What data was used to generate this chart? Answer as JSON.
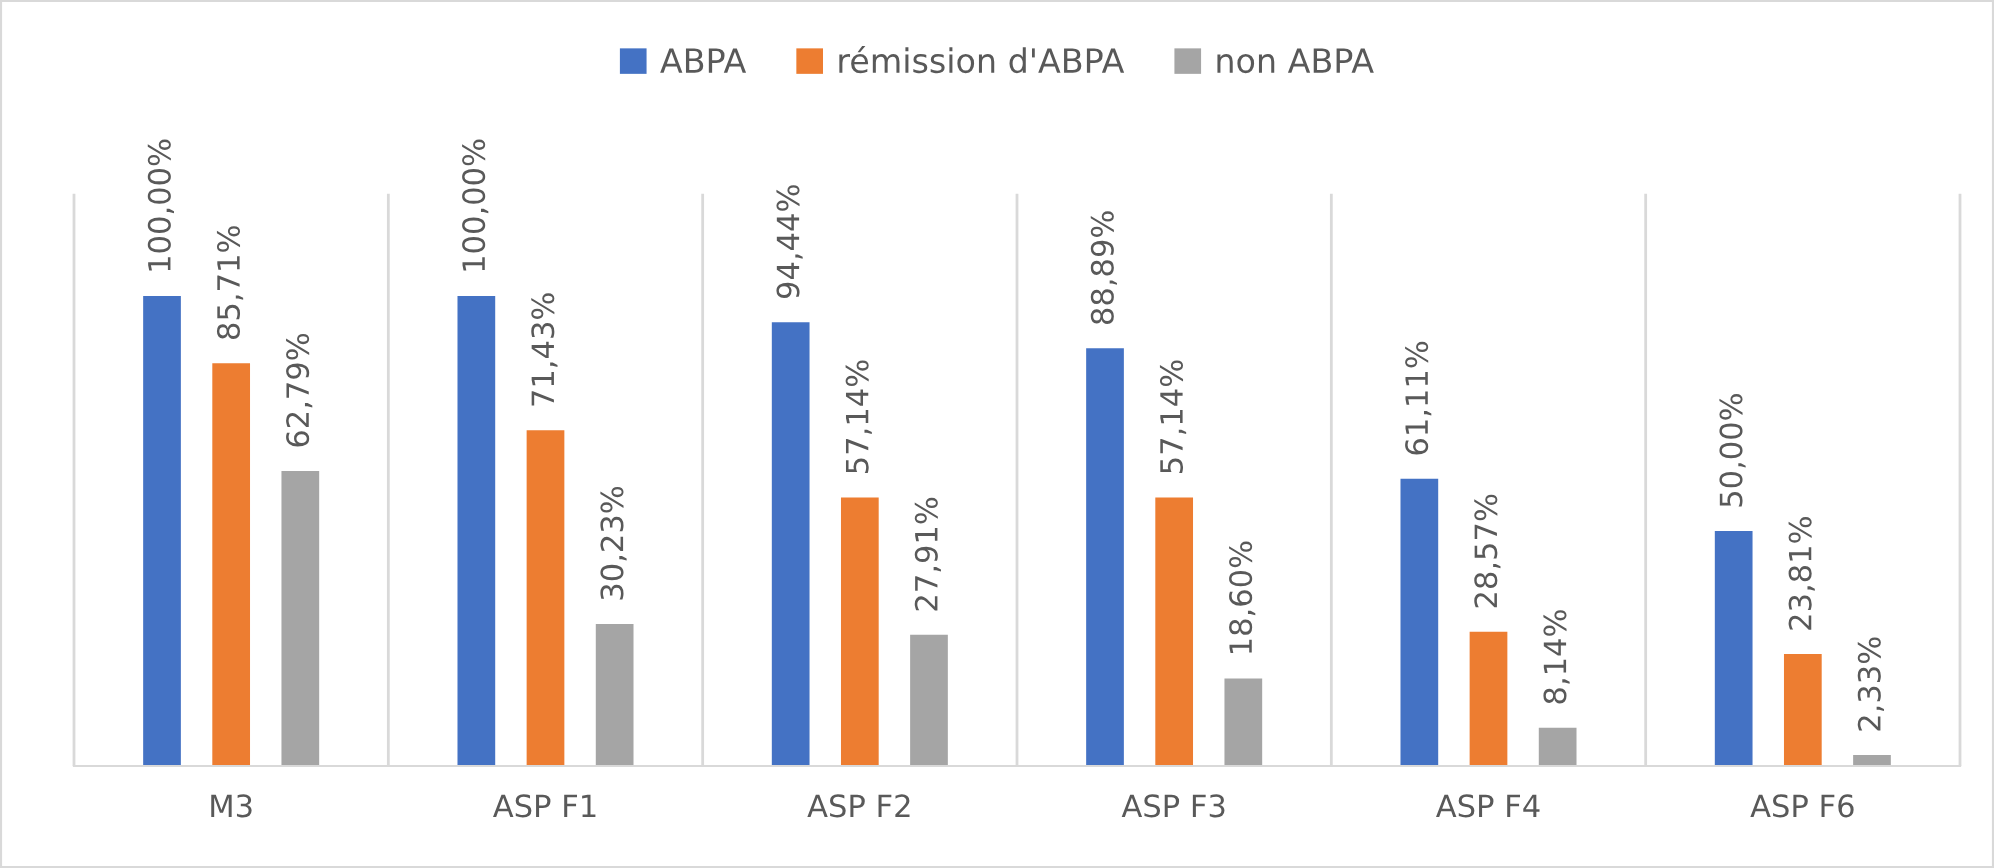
{
  "chart_data": {
    "type": "bar",
    "categories": [
      "M3",
      "ASP F1",
      "ASP F2",
      "ASP F3",
      "ASP F4",
      "ASP F6"
    ],
    "series": [
      {
        "name": "ABPA",
        "color": "#4472c4",
        "values": [
          100.0,
          100.0,
          94.44,
          88.89,
          61.11,
          50.0
        ],
        "value_labels": [
          "100,00%",
          "100,00%",
          "94,44%",
          "88,89%",
          "61,11%",
          "50,00%"
        ]
      },
      {
        "name": "rémission d'ABPA",
        "color": "#ed7d31",
        "values": [
          85.71,
          71.43,
          57.14,
          57.14,
          28.57,
          23.81
        ],
        "value_labels": [
          "85,71%",
          "71,43%",
          "57,14%",
          "57,14%",
          "28,57%",
          "23,81%"
        ]
      },
      {
        "name": "non ABPA",
        "color": "#a5a5a5",
        "values": [
          62.79,
          30.23,
          27.91,
          18.6,
          8.14,
          2.33
        ],
        "value_labels": [
          "62,79%",
          "30,23%",
          "27,91%",
          "18,60%",
          "8,14%",
          "2,33%"
        ]
      }
    ],
    "legend": "top"
  }
}
